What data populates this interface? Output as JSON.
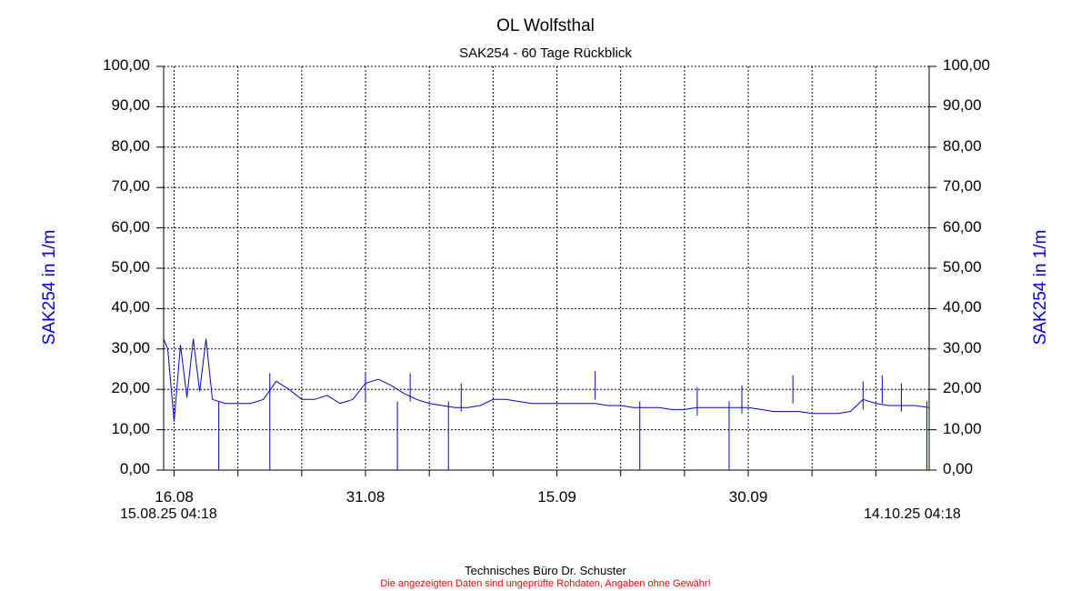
{
  "title": "OL Wolfsthal",
  "subtitle": "SAK254 - 60 Tage Rückblick",
  "ylabel": "SAK254 in 1/m",
  "y_ticks": [
    "0,00",
    "10,00",
    "20,00",
    "30,00",
    "40,00",
    "50,00",
    "60,00",
    "70,00",
    "80,00",
    "90,00",
    "100,00"
  ],
  "x_ticks": [
    "16.08",
    "31.08",
    "15.09",
    "30.09"
  ],
  "start_label": "15.08.25 04:18",
  "end_label": "14.10.25 04:18",
  "footer": "Technisches Büro Dr. Schuster",
  "disclaimer": "Die angezeigten Daten sind ungeprüfte Rohdaten, Angaben ohne Gewähr!",
  "colors": {
    "series": "#0000cc",
    "disclaimer": "#ff0000",
    "grid": "#000000"
  },
  "chart_data": {
    "type": "line",
    "title": "OL Wolfsthal",
    "subtitle": "SAK254 - 60 Tage Rückblick",
    "xlabel": "",
    "ylabel": "SAK254 in 1/m",
    "ylim": [
      0,
      100
    ],
    "xlim": [
      "2025-08-15 04:18",
      "2025-10-14 04:18"
    ],
    "grid": true,
    "series": [
      {
        "x": [
          "2025-08-15 04:18",
          "2025-08-15 12:00",
          "2025-08-16 00:00",
          "2025-08-16 12:00",
          "2025-08-17 00:00",
          "2025-08-17 12:00",
          "2025-08-18 00:00",
          "2025-08-18 12:00",
          "2025-08-19 00:00",
          "2025-08-20 00:00",
          "2025-08-21 00:00",
          "2025-08-22 00:00",
          "2025-08-23 00:00",
          "2025-08-24 00:00",
          "2025-08-25 00:00",
          "2025-08-26 00:00",
          "2025-08-27 00:00",
          "2025-08-28 00:00",
          "2025-08-29 00:00",
          "2025-08-30 00:00",
          "2025-08-31 00:00",
          "2025-09-01 00:00",
          "2025-09-02 00:00",
          "2025-09-03 00:00",
          "2025-09-04 00:00",
          "2025-09-05 00:00",
          "2025-09-06 00:00",
          "2025-09-07 00:00",
          "2025-09-08 00:00",
          "2025-09-09 00:00",
          "2025-09-10 00:00",
          "2025-09-11 00:00",
          "2025-09-12 00:00",
          "2025-09-13 00:00",
          "2025-09-14 00:00",
          "2025-09-15 00:00",
          "2025-09-16 00:00",
          "2025-09-17 00:00",
          "2025-09-18 00:00",
          "2025-09-19 00:00",
          "2025-09-20 00:00",
          "2025-09-21 00:00",
          "2025-09-22 00:00",
          "2025-09-23 00:00",
          "2025-09-24 00:00",
          "2025-09-25 00:00",
          "2025-09-26 00:00",
          "2025-09-27 00:00",
          "2025-09-28 00:00",
          "2025-09-29 00:00",
          "2025-09-30 00:00",
          "2025-10-01 00:00",
          "2025-10-02 00:00",
          "2025-10-03 00:00",
          "2025-10-04 00:00",
          "2025-10-05 00:00",
          "2025-10-06 00:00",
          "2025-10-07 00:00",
          "2025-10-08 00:00",
          "2025-10-09 00:00",
          "2025-10-10 00:00",
          "2025-10-11 00:00",
          "2025-10-12 00:00",
          "2025-10-13 00:00",
          "2025-10-14 04:18"
        ],
        "values": [
          32.5,
          30.0,
          12.0,
          31.0,
          18.0,
          32.5,
          19.5,
          32.5,
          17.5,
          16.5,
          16.5,
          16.5,
          17.5,
          22.0,
          20.0,
          17.5,
          17.5,
          18.5,
          16.5,
          17.5,
          21.5,
          22.5,
          21.0,
          19.0,
          17.5,
          16.5,
          16.0,
          15.5,
          15.5,
          16.0,
          17.5,
          17.5,
          17.0,
          16.5,
          16.5,
          16.5,
          16.5,
          16.5,
          16.5,
          16.0,
          16.0,
          15.5,
          15.5,
          15.5,
          15.0,
          15.0,
          15.5,
          15.5,
          15.5,
          15.5,
          15.5,
          15.0,
          14.5,
          14.5,
          14.5,
          14.0,
          14.0,
          14.0,
          14.5,
          17.5,
          16.5,
          16.0,
          16.0,
          16.0,
          15.5
        ]
      }
    ],
    "drops_to_zero": [
      "2025-08-19 12:00",
      "2025-08-23 12:00",
      "2025-09-02 12:00",
      "2025-09-06 12:00",
      "2025-09-21 12:00",
      "2025-09-28 12:00",
      "2025-10-14 00:00"
    ],
    "spikes": [
      {
        "x": "2025-08-23 12:00",
        "value": 24.0
      },
      {
        "x": "2025-08-31 00:00",
        "value": 24.0
      },
      {
        "x": "2025-09-03 12:00",
        "value": 24.0
      },
      {
        "x": "2025-09-07 12:00",
        "value": 21.5
      },
      {
        "x": "2025-09-18 00:00",
        "value": 24.5
      },
      {
        "x": "2025-09-26 00:00",
        "value": 20.5
      },
      {
        "x": "2025-09-29 12:00",
        "value": 21.0
      },
      {
        "x": "2025-10-03 12:00",
        "value": 23.5
      },
      {
        "x": "2025-10-09 00:00",
        "value": 22.0
      },
      {
        "x": "2025-10-10 12:00",
        "value": 23.5
      },
      {
        "x": "2025-10-12 00:00",
        "value": 21.5
      }
    ]
  }
}
